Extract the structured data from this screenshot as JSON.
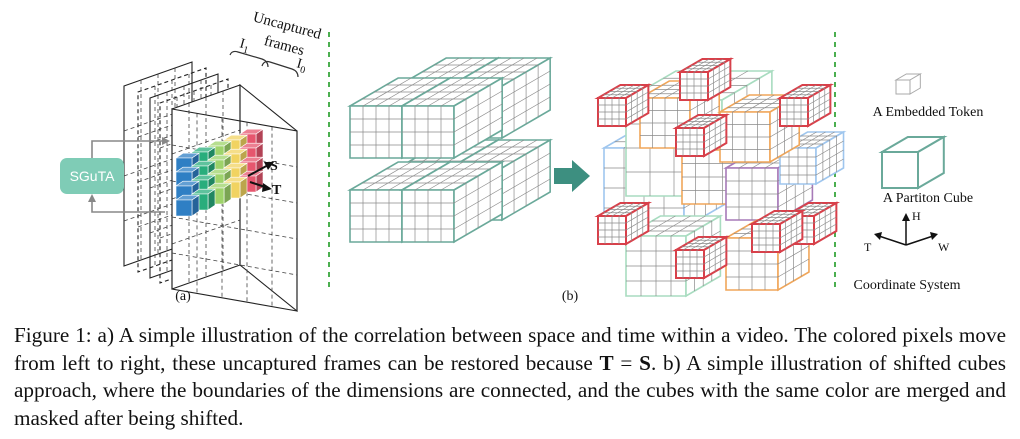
{
  "figure": {
    "panel_a": {
      "sub_label": "(a)",
      "sguta_label": "SGuTA",
      "uncaptured_top": "Uncaptured",
      "uncaptured_bottom": "frames",
      "i1_label": "I",
      "i1_sub": "1",
      "i0_label": "I",
      "i0_sub": "0",
      "s_label": "S",
      "t_label": "T",
      "pixel_colors": [
        "#2f7fc4",
        "#29ad7c",
        "#9ed36a",
        "#f1d361",
        "#e6566e"
      ]
    },
    "panel_b": {
      "sub_label": "(b)",
      "cube_color": "#6aa99a",
      "shift_colors": {
        "red": "#d8404a",
        "orange": "#f0a65a",
        "blue": "#9fc6ee",
        "purple": "#a77ab8",
        "light_green": "#a8dcc0"
      }
    },
    "legend": {
      "token_label": "A Embedded Token",
      "cube_label": "A Partiton Cube",
      "coord_label": "Coordinate System",
      "axis_h": "H",
      "axis_t": "T",
      "axis_w": "W"
    }
  },
  "caption": {
    "prefix": "Figure 1: a) A simple illustration of the correlation between space and time within a video. The colored pixels move from left to right, these uncaptured frames can be restored because ",
    "eq_t": "T",
    "eq_sign": " = ",
    "eq_s": "S",
    "suffix": ". b) A simple illustration of shifted cubes approach, where the boundaries of the dimensions are connected, and the cubes with the same color are merged and masked after being shifted."
  }
}
